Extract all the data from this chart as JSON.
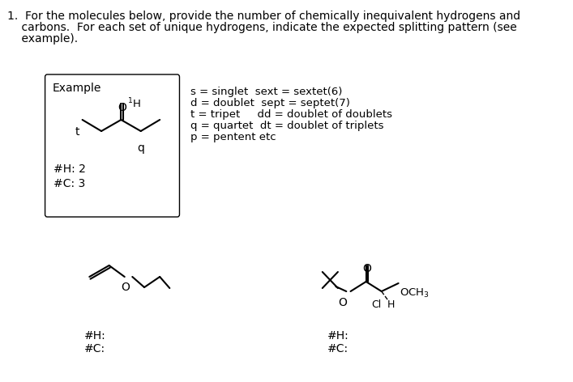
{
  "legend_lines": [
    "s = singlet  sext = sextet(6)",
    "d = doublet  sept = septet(7)",
    "t = tripet     dd = doublet of doublets",
    "q = quartet  dt = doublet of triplets",
    "p = pentent etc"
  ],
  "mol1_hcount": "#H:",
  "mol1_ccount": "#C:",
  "mol2_hcount": "#H:",
  "mol2_ccount": "#C:",
  "bg_color": "#ffffff",
  "text_color": "#000000",
  "title_line1": "1.  For the molecules below, provide the number of chemically inequivalent hydrogens and",
  "title_line2": "    carbons.  For each set of unique hydrogens, indicate the expected splitting pattern (see",
  "title_line3": "    example).  ",
  "example_label": "Example",
  "example_hcount": "#H: 2",
  "example_ccount": "#C: 3"
}
